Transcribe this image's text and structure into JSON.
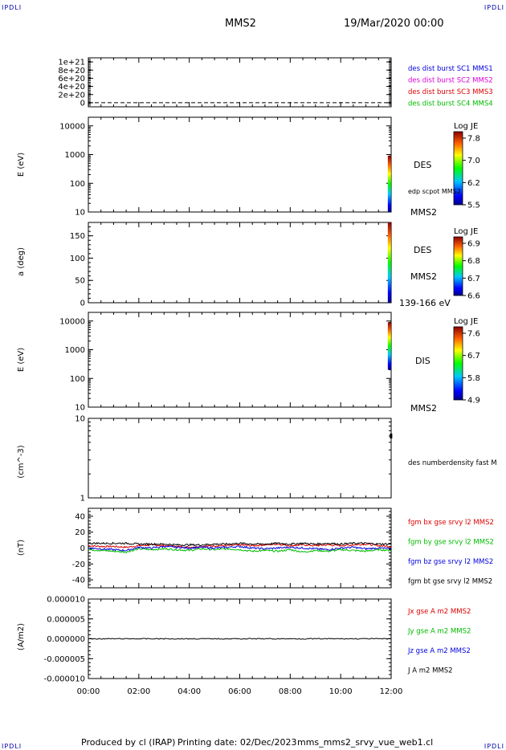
{
  "corner_label": "IPDLI",
  "header": {
    "spacecraft": "MMS2",
    "date": "19/Mar/2020 00:00"
  },
  "footer": {
    "produced_by": "Produced by cl (IRAP)",
    "printing_date": "Printing date: 02/Dec/2023",
    "file": "mms_mms2_srvy_vue_web1.cl"
  },
  "colors": {
    "blue": "#0000dd",
    "magenta": "#dd00dd",
    "red": "#dd0000",
    "green": "#00bb00",
    "black": "#000000"
  },
  "chart_data": [
    {
      "type": "line",
      "panel": "des-dist-burst",
      "ylabel": "",
      "ylim": [
        -100000000000000000000,
        1100000000000000000000
      ],
      "yticks": [
        0,
        200000000000000000000,
        400000000000000000000,
        600000000000000000000,
        800000000000000000000,
        1000000000000000000000
      ],
      "ytick_labels": [
        "0",
        "2e+20",
        "4e+20",
        "6e+20",
        "8e+20",
        "1e+21"
      ],
      "series": [
        {
          "name": "des dist burst SC1 MMS1",
          "color": "#0000dd"
        },
        {
          "name": "des dist burst SC2 MMS2",
          "color": "#dd00dd"
        },
        {
          "name": "des dist burst SC3 MMS3",
          "color": "#dd0000"
        },
        {
          "name": "des dist burst SC4 MMS4",
          "color": "#00bb00"
        }
      ],
      "x": [
        0,
        12
      ],
      "values": [
        0,
        0
      ]
    },
    {
      "type": "heatmap",
      "panel": "des-energy",
      "ylabel": "E (eV)",
      "yscale": "log",
      "ylim": [
        10,
        20000
      ],
      "yticks": [
        10,
        100,
        1000,
        10000
      ],
      "ytick_labels": [
        "10",
        "100",
        "1000",
        "10000"
      ],
      "labels": [
        "DES",
        "edp scpot MMS2",
        "MMS2"
      ],
      "colorbar": {
        "title": "Log JE",
        "tick_labels": [
          "7.8",
          "7.0",
          "6.2",
          "5.5"
        ]
      },
      "data_x": [
        11.9,
        12.0
      ],
      "data_y": [
        10,
        900
      ]
    },
    {
      "type": "heatmap",
      "panel": "des-pitch-angle",
      "ylabel": "a (deg)",
      "ylim": [
        0,
        180
      ],
      "yticks": [
        0,
        50,
        100,
        150
      ],
      "ytick_labels": [
        "0",
        "50",
        "100",
        "150"
      ],
      "labels": [
        "DES",
        "MMS2",
        "139-166 eV"
      ],
      "colorbar": {
        "title": "Log JE",
        "tick_labels": [
          "6.9",
          "6.8",
          "6.7",
          "6.6"
        ]
      },
      "data_x": [
        11.9,
        12.0
      ],
      "data_y": [
        0,
        180
      ]
    },
    {
      "type": "heatmap",
      "panel": "dis-energy",
      "ylabel": "E (eV)",
      "yscale": "log",
      "ylim": [
        10,
        20000
      ],
      "yticks": [
        10,
        100,
        1000,
        10000
      ],
      "ytick_labels": [
        "10",
        "100",
        "1000",
        "10000"
      ],
      "labels": [
        "DIS",
        "MMS2"
      ],
      "colorbar": {
        "title": "Log JE",
        "tick_labels": [
          "7.6",
          "6.7",
          "5.8",
          "4.9"
        ]
      },
      "data_x": [
        11.9,
        12.0
      ],
      "data_y": [
        200,
        9000
      ]
    },
    {
      "type": "line",
      "panel": "des-numberdensity",
      "ylabel": "(cm^-3)",
      "yscale": "log",
      "ylim": [
        1,
        10
      ],
      "yticks": [
        1,
        10
      ],
      "ytick_labels": [
        "1",
        "10"
      ],
      "series": [
        {
          "name": "des numberdensity fast M",
          "color": "#000000",
          "x": [
            11.98,
            12.0
          ],
          "values": [
            6.0,
            6.0
          ]
        }
      ]
    },
    {
      "type": "line",
      "panel": "fgm-b",
      "ylabel": "(nT)",
      "ylim": [
        -50,
        50
      ],
      "yticks": [
        -40,
        -20,
        0,
        20,
        40
      ],
      "ytick_labels": [
        "-40",
        "-20",
        "0",
        "20",
        "40"
      ],
      "x": [
        0,
        0.5,
        1,
        1.5,
        2,
        2.5,
        3,
        3.5,
        4,
        4.5,
        5,
        5.5,
        6,
        6.5,
        7,
        7.5,
        8,
        8.5,
        9,
        9.5,
        10,
        10.5,
        11,
        11.5,
        12
      ],
      "series": [
        {
          "name": "fgm bx gse srvy l2 MMS2",
          "color": "#dd0000",
          "values": [
            3,
            2,
            2,
            1,
            3,
            4,
            3,
            2,
            1,
            2,
            3,
            3,
            4,
            3,
            4,
            5,
            3,
            4,
            3,
            4,
            3,
            4,
            5,
            3,
            2
          ]
        },
        {
          "name": "fgm by gse srvy l2 MMS2",
          "color": "#00bb00",
          "values": [
            -2,
            -3,
            -4,
            -5,
            -1,
            -2,
            -1,
            -2,
            -3,
            -1,
            -2,
            -1,
            -2,
            -4,
            -3,
            -4,
            -2,
            -5,
            -3,
            -4,
            -2,
            -3,
            -4,
            -2,
            -3
          ]
        },
        {
          "name": "fgm bz gse srvy l2 MMS2",
          "color": "#0000dd",
          "values": [
            0,
            -1,
            -2,
            -3,
            1,
            0,
            2,
            1,
            0,
            1,
            0,
            1,
            2,
            0,
            -1,
            0,
            1,
            0,
            -1,
            -2,
            0,
            1,
            -1,
            0,
            -1
          ]
        },
        {
          "name": "fgm bt gse srvy l2 MMS2",
          "color": "#000000",
          "values": [
            6,
            6,
            6,
            6,
            5,
            5,
            5,
            4,
            4,
            4,
            5,
            5,
            6,
            5,
            5,
            6,
            5,
            6,
            5,
            6,
            5,
            6,
            6,
            5,
            5
          ]
        }
      ]
    },
    {
      "type": "line",
      "panel": "current-density",
      "ylabel": "(A/m2)",
      "ylim": [
        -1e-05,
        1e-05
      ],
      "yticks": [
        -1e-05,
        -5e-06,
        0,
        5e-06,
        1e-05
      ],
      "ytick_labels": [
        "-0.000010",
        "-0.000005",
        "0.000000",
        "0.000005",
        "0.000010"
      ],
      "xlim": [
        0,
        12
      ],
      "xticks": [
        0,
        2,
        4,
        6,
        8,
        10,
        12
      ],
      "xtick_labels": [
        "00:00",
        "02:00",
        "04:00",
        "06:00",
        "08:00",
        "10:00",
        "12:00"
      ],
      "x": [
        0,
        12
      ],
      "series": [
        {
          "name": "Jx gse A m2 MMS2",
          "color": "#dd0000"
        },
        {
          "name": "Jy gse A m2 MMS2",
          "color": "#00bb00"
        },
        {
          "name": "Jz gse A m2 MMS2",
          "color": "#0000dd"
        },
        {
          "name": "J A m2 MMS2",
          "color": "#000000",
          "values": [
            0,
            0
          ]
        }
      ]
    }
  ]
}
